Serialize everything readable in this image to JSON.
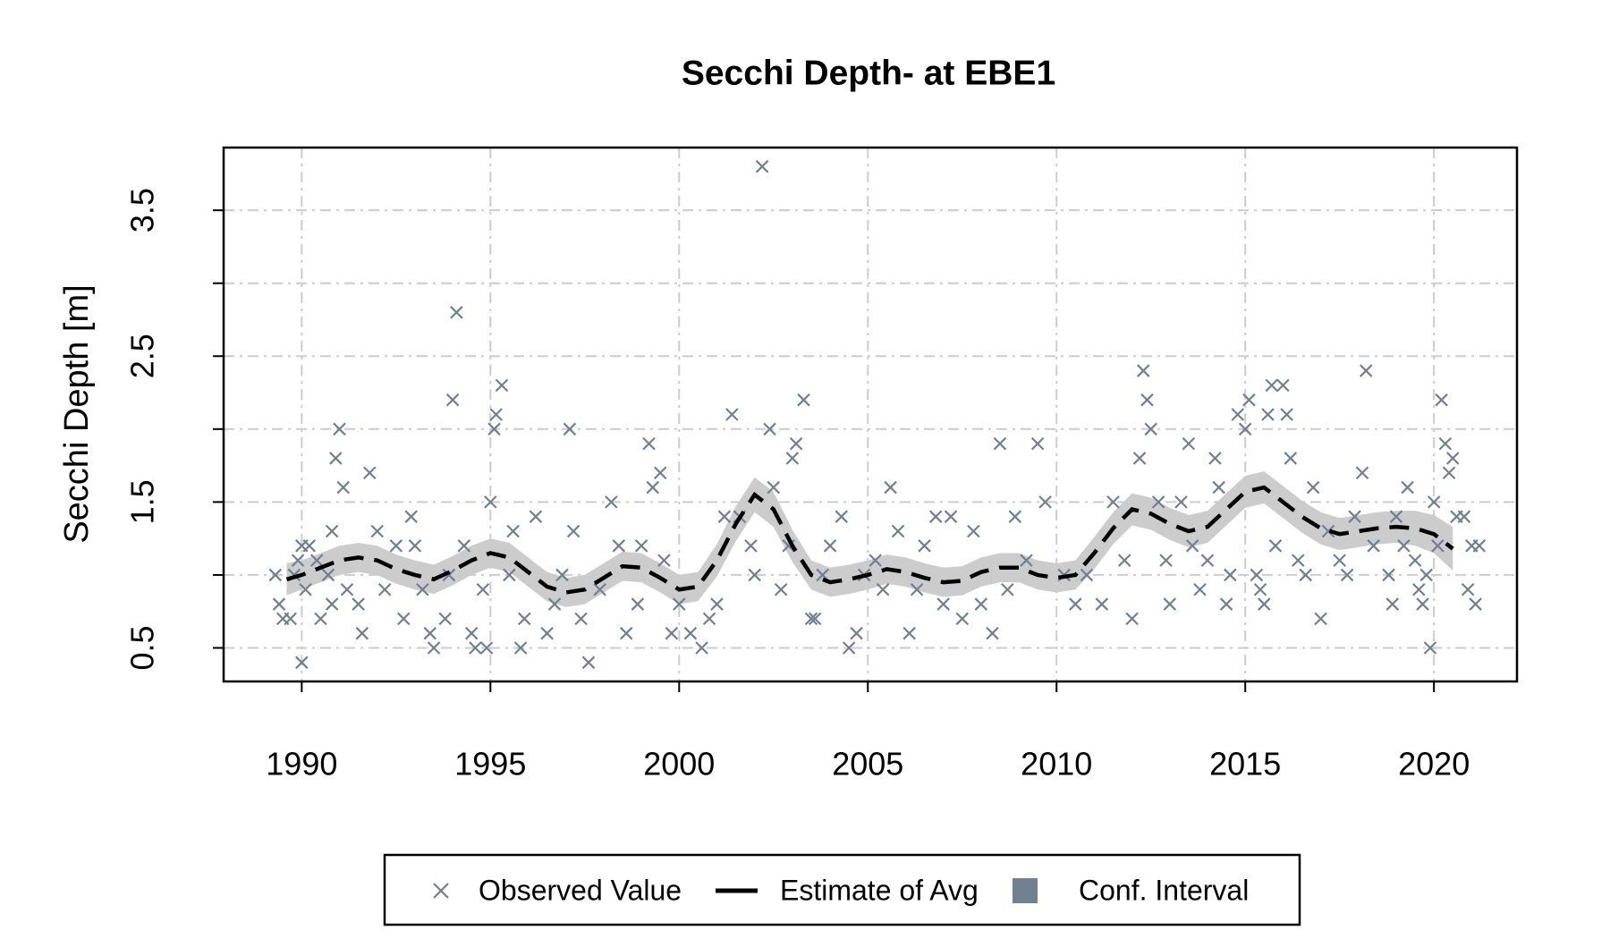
{
  "chart_data": {
    "type": "scatter",
    "title": "Secchi Depth- at EBE1",
    "ylabel": "Secchi Depth [m]",
    "xlim": [
      1987.93,
      2022.2
    ],
    "ylim": [
      0.27,
      3.93
    ],
    "xticks": [
      1990,
      1995,
      2000,
      2005,
      2010,
      2015,
      2020
    ],
    "yticks": [
      0.5,
      1.5,
      2.5,
      3.5
    ],
    "yticks_unlabeled": [
      1,
      2,
      3
    ],
    "grid": true,
    "legend": "bottom",
    "series": [
      {
        "name": "Observed Value",
        "type": "scatter",
        "color": "#708090",
        "x": [
          1989.3,
          1989.4,
          1989.5,
          1989.7,
          1989.8,
          1989.9,
          1990.0,
          1990.1,
          1990.2,
          1990.0,
          1990.4,
          1990.5,
          1990.7,
          1990.8,
          1990.8,
          1990.9,
          1991.0,
          1991.1,
          1991.2,
          1991.5,
          1991.6,
          1991.8,
          1992.0,
          1992.2,
          1992.5,
          1992.7,
          1992.9,
          1993.0,
          1993.2,
          1993.4,
          1993.5,
          1993.8,
          1993.9,
          1994.0,
          1994.1,
          1994.3,
          1994.5,
          1994.6,
          1994.8,
          1994.9,
          1995.0,
          1995.1,
          1995.15,
          1995.3,
          1995.5,
          1995.6,
          1995.8,
          1995.9,
          1996.2,
          1996.5,
          1996.7,
          1996.9,
          1997.1,
          1997.2,
          1997.4,
          1997.6,
          1997.9,
          1998.2,
          1998.4,
          1998.6,
          1998.9,
          1999.0,
          1999.2,
          1999.3,
          1999.5,
          1999.6,
          1999.8,
          2000.0,
          2000.3,
          2000.6,
          2000.8,
          2001.0,
          2001.2,
          2001.4,
          2001.6,
          2001.9,
          2002.0,
          2002.2,
          2002.4,
          2002.5,
          2002.7,
          2002.9,
          2003.0,
          2003.1,
          2003.3,
          2003.5,
          2003.6,
          2003.8,
          2004.0,
          2004.3,
          2004.5,
          2004.7,
          2004.9,
          2005.2,
          2005.4,
          2005.6,
          2005.8,
          2006.1,
          2006.3,
          2006.5,
          2006.8,
          2007.0,
          2007.2,
          2007.5,
          2007.8,
          2008.0,
          2008.3,
          2008.5,
          2008.7,
          2008.9,
          2009.2,
          2009.5,
          2009.7,
          2010.2,
          2010.5,
          2010.8,
          2011.2,
          2011.5,
          2011.8,
          2012.0,
          2012.2,
          2012.3,
          2012.4,
          2012.5,
          2012.7,
          2012.9,
          2013.0,
          2013.3,
          2013.5,
          2013.6,
          2013.8,
          2014.0,
          2014.2,
          2014.3,
          2014.5,
          2014.6,
          2014.8,
          2015.0,
          2015.1,
          2015.3,
          2015.4,
          2015.5,
          2015.6,
          2015.7,
          2015.8,
          2016.0,
          2016.1,
          2016.2,
          2016.4,
          2016.6,
          2016.8,
          2017.0,
          2017.2,
          2017.5,
          2017.7,
          2017.9,
          2018.1,
          2018.2,
          2018.4,
          2018.8,
          2018.9,
          2019.0,
          2019.2,
          2019.3,
          2019.5,
          2019.6,
          2019.7,
          2019.8,
          2019.9,
          2020.0,
          2020.1,
          2020.2,
          2020.3,
          2020.4,
          2020.5,
          2020.6,
          2020.8,
          2020.9,
          2021.0,
          2021.1,
          2021.2
        ],
        "values": [
          1.0,
          0.8,
          0.7,
          0.7,
          1.0,
          1.1,
          1.2,
          0.9,
          1.2,
          0.4,
          1.1,
          0.7,
          1.0,
          0.8,
          1.3,
          1.8,
          2.0,
          1.6,
          0.9,
          0.8,
          0.6,
          1.7,
          1.3,
          0.9,
          1.2,
          0.7,
          1.4,
          1.2,
          0.9,
          0.6,
          0.5,
          0.7,
          1.0,
          2.2,
          2.8,
          1.2,
          0.6,
          0.5,
          0.9,
          0.5,
          1.5,
          2.0,
          2.1,
          2.3,
          1.0,
          1.3,
          0.5,
          0.7,
          1.4,
          0.6,
          0.8,
          1.0,
          2.0,
          1.3,
          0.7,
          0.4,
          0.9,
          1.5,
          1.2,
          0.6,
          0.8,
          1.2,
          1.9,
          1.6,
          1.7,
          1.1,
          0.6,
          0.8,
          0.6,
          0.5,
          0.7,
          0.8,
          1.4,
          2.1,
          1.4,
          1.2,
          1.0,
          3.8,
          2.0,
          1.6,
          0.9,
          1.2,
          1.8,
          1.9,
          2.2,
          0.7,
          0.7,
          1.0,
          1.2,
          1.4,
          0.5,
          0.6,
          1.0,
          1.1,
          0.9,
          1.6,
          1.3,
          0.6,
          0.9,
          1.2,
          1.4,
          0.8,
          1.4,
          0.7,
          1.3,
          0.8,
          0.6,
          1.9,
          0.9,
          1.4,
          1.1,
          1.9,
          1.5,
          1.0,
          0.8,
          1.0,
          0.8,
          1.5,
          1.1,
          0.7,
          1.8,
          2.4,
          2.2,
          2.0,
          1.5,
          1.1,
          0.8,
          1.5,
          1.9,
          1.2,
          0.9,
          1.1,
          1.8,
          1.6,
          0.8,
          1.0,
          2.1,
          2.0,
          2.2,
          1.0,
          0.9,
          0.8,
          2.1,
          2.3,
          1.2,
          2.3,
          2.1,
          1.8,
          1.1,
          1.0,
          1.6,
          0.7,
          1.3,
          1.1,
          1.0,
          1.4,
          1.7,
          2.4,
          1.2,
          1.0,
          0.8,
          1.4,
          1.2,
          1.6,
          1.1,
          0.9,
          0.8,
          1.0,
          0.5,
          1.5,
          1.2,
          2.2,
          1.9,
          1.7,
          1.8,
          1.4,
          1.4,
          0.9,
          1.2,
          0.8,
          1.2
        ]
      },
      {
        "name": "Estimate of Avg",
        "type": "line",
        "color": "#000000",
        "dashed": true,
        "x": [
          1989.6,
          1990,
          1990.5,
          1991,
          1991.5,
          1992,
          1992.5,
          1993,
          1993.5,
          1994,
          1994.5,
          1995,
          1995.5,
          1996,
          1996.5,
          1997,
          1997.5,
          1998,
          1998.5,
          1999,
          1999.5,
          2000,
          2000.5,
          2001,
          2001.5,
          2002,
          2002.5,
          2003,
          2003.5,
          2004,
          2004.5,
          2005,
          2005.5,
          2006,
          2006.5,
          2007,
          2007.5,
          2008,
          2008.5,
          2009,
          2009.5,
          2010,
          2010.5,
          2011,
          2011.5,
          2012,
          2012.5,
          2013,
          2013.5,
          2014,
          2014.5,
          2015,
          2015.5,
          2016,
          2016.5,
          2017,
          2017.5,
          2018,
          2018.5,
          2019,
          2019.5,
          2020,
          2020.5
        ],
        "values": [
          0.97,
          1.0,
          1.05,
          1.1,
          1.12,
          1.1,
          1.04,
          1.0,
          0.97,
          1.03,
          1.1,
          1.15,
          1.12,
          1.02,
          0.92,
          0.88,
          0.9,
          0.98,
          1.06,
          1.05,
          0.98,
          0.9,
          0.92,
          1.1,
          1.35,
          1.55,
          1.45,
          1.2,
          1.0,
          0.95,
          0.97,
          1.0,
          1.04,
          1.02,
          0.98,
          0.95,
          0.96,
          1.02,
          1.05,
          1.05,
          1.0,
          0.98,
          1.0,
          1.15,
          1.32,
          1.45,
          1.42,
          1.35,
          1.3,
          1.33,
          1.45,
          1.57,
          1.6,
          1.5,
          1.4,
          1.32,
          1.28,
          1.3,
          1.32,
          1.33,
          1.32,
          1.28,
          1.18
        ]
      },
      {
        "name": "Conf. Interval",
        "type": "band",
        "color": "#cccccc",
        "legend_color": "#708090",
        "x": [
          1989.6,
          1990,
          1990.5,
          1991,
          1991.5,
          1992,
          1992.5,
          1993,
          1993.5,
          1994,
          1994.5,
          1995,
          1995.5,
          1996,
          1996.5,
          1997,
          1997.5,
          1998,
          1998.5,
          1999,
          1999.5,
          2000,
          2000.5,
          2001,
          2001.5,
          2002,
          2002.5,
          2003,
          2003.5,
          2004,
          2004.5,
          2005,
          2005.5,
          2006,
          2006.5,
          2007,
          2007.5,
          2008,
          2008.5,
          2009,
          2009.5,
          2010,
          2010.5,
          2011,
          2011.5,
          2012,
          2012.5,
          2013,
          2013.5,
          2014,
          2014.5,
          2015,
          2015.5,
          2016,
          2016.5,
          2017,
          2017.5,
          2018,
          2018.5,
          2019,
          2019.5,
          2020,
          2020.5
        ],
        "lower": [
          0.86,
          0.9,
          0.95,
          1.0,
          1.02,
          1.0,
          0.94,
          0.9,
          0.87,
          0.93,
          1.0,
          1.05,
          1.02,
          0.92,
          0.82,
          0.78,
          0.8,
          0.88,
          0.96,
          0.95,
          0.88,
          0.8,
          0.82,
          0.99,
          1.23,
          1.43,
          1.33,
          1.09,
          0.9,
          0.85,
          0.87,
          0.9,
          0.94,
          0.92,
          0.88,
          0.85,
          0.86,
          0.92,
          0.95,
          0.95,
          0.9,
          0.88,
          0.9,
          1.04,
          1.21,
          1.34,
          1.31,
          1.24,
          1.19,
          1.22,
          1.34,
          1.46,
          1.49,
          1.39,
          1.29,
          1.21,
          1.17,
          1.19,
          1.21,
          1.22,
          1.2,
          1.15,
          1.03
        ],
        "upper": [
          1.08,
          1.1,
          1.15,
          1.2,
          1.22,
          1.2,
          1.14,
          1.1,
          1.07,
          1.13,
          1.2,
          1.25,
          1.22,
          1.12,
          1.02,
          0.98,
          1.0,
          1.08,
          1.16,
          1.15,
          1.08,
          1.0,
          1.02,
          1.21,
          1.47,
          1.67,
          1.57,
          1.31,
          1.1,
          1.05,
          1.07,
          1.1,
          1.14,
          1.12,
          1.08,
          1.05,
          1.06,
          1.12,
          1.15,
          1.15,
          1.1,
          1.08,
          1.1,
          1.26,
          1.43,
          1.56,
          1.53,
          1.46,
          1.41,
          1.44,
          1.56,
          1.68,
          1.71,
          1.61,
          1.51,
          1.43,
          1.39,
          1.41,
          1.43,
          1.44,
          1.44,
          1.41,
          1.33
        ]
      }
    ]
  }
}
